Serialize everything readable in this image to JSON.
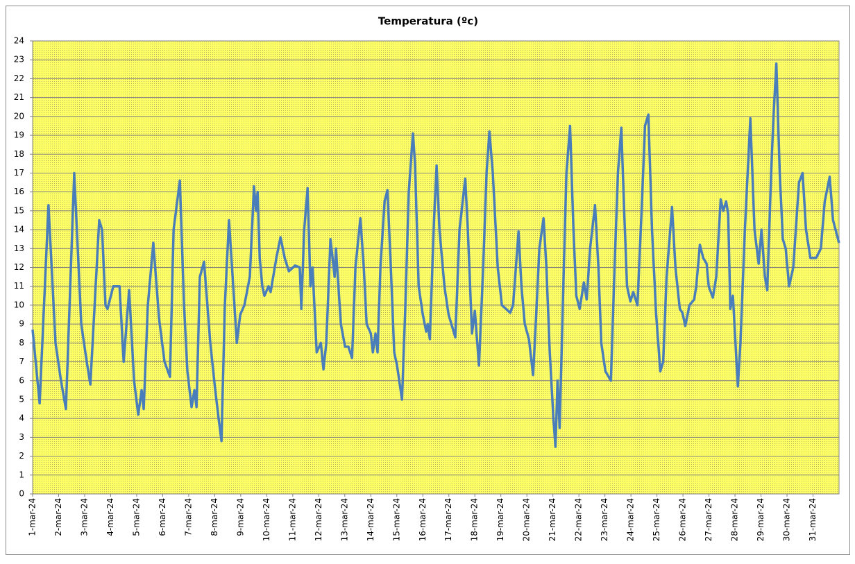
{
  "chart_data": {
    "type": "line",
    "title": "Temperatura (ºc)",
    "xlim": [
      1,
      32
    ],
    "xticks": [
      {
        "value": 1,
        "label": "1-mar-24"
      },
      {
        "value": 2,
        "label": "2-mar-24"
      },
      {
        "value": 3,
        "label": "3-mar-24"
      },
      {
        "value": 4,
        "label": "4-mar-24"
      },
      {
        "value": 5,
        "label": "5-mar-24"
      },
      {
        "value": 6,
        "label": "6-mar-24"
      },
      {
        "value": 7,
        "label": "7-mar-24"
      },
      {
        "value": 8,
        "label": "8-mar-24"
      },
      {
        "value": 9,
        "label": "9-mar-24"
      },
      {
        "value": 10,
        "label": "10-mar-24"
      },
      {
        "value": 11,
        "label": "11-mar-24"
      },
      {
        "value": 12,
        "label": "12-mar-24"
      },
      {
        "value": 13,
        "label": "13-mar-24"
      },
      {
        "value": 14,
        "label": "14-mar-24"
      },
      {
        "value": 15,
        "label": "15-mar-24"
      },
      {
        "value": 16,
        "label": "16-mar-24"
      },
      {
        "value": 17,
        "label": "17-mar-24"
      },
      {
        "value": 18,
        "label": "18-mar-24"
      },
      {
        "value": 19,
        "label": "19-mar-24"
      },
      {
        "value": 20,
        "label": "20-mar-24"
      },
      {
        "value": 21,
        "label": "21-mar-24"
      },
      {
        "value": 22,
        "label": "22-mar-24"
      },
      {
        "value": 23,
        "label": "23-mar-24"
      },
      {
        "value": 24,
        "label": "24-mar-24"
      },
      {
        "value": 25,
        "label": "25-mar-24"
      },
      {
        "value": 26,
        "label": "26-mar-24"
      },
      {
        "value": 27,
        "label": "27-mar-24"
      },
      {
        "value": 28,
        "label": "28-mar-24"
      },
      {
        "value": 29,
        "label": "29-mar-24"
      },
      {
        "value": 30,
        "label": "30-mar-24"
      },
      {
        "value": 31,
        "label": "31-mar-24"
      }
    ],
    "ylim": [
      0,
      24
    ],
    "yticks": [
      0,
      1,
      2,
      3,
      4,
      5,
      6,
      7,
      8,
      9,
      10,
      11,
      12,
      13,
      14,
      15,
      16,
      17,
      18,
      19,
      20,
      21,
      22,
      23,
      24
    ],
    "grid": true,
    "x": [
      1,
      1.27,
      1.61,
      1.88,
      2.09,
      2.28,
      2.6,
      2.87,
      3.08,
      3.22,
      3.56,
      3.67,
      3.8,
      3.88,
      4.1,
      4.34,
      4.5,
      4.71,
      4.9,
      5.06,
      5.19,
      5.27,
      5.43,
      5.64,
      5.86,
      6.07,
      6.28,
      6.42,
      6.66,
      6.82,
      6.95,
      7.11,
      7.22,
      7.3,
      7.43,
      7.59,
      7.83,
      8.02,
      8.15,
      8.26,
      8.39,
      8.55,
      8.85,
      8.98,
      9.14,
      9.35,
      9.51,
      9.59,
      9.65,
      9.73,
      9.83,
      9.91,
      10.07,
      10.15,
      10.37,
      10.53,
      10.69,
      10.85,
      11.09,
      11.27,
      11.33,
      11.44,
      11.57,
      11.68,
      11.76,
      11.92,
      12.08,
      12.18,
      12.29,
      12.45,
      12.61,
      12.66,
      12.85,
      13.01,
      13.14,
      13.28,
      13.41,
      13.6,
      13.73,
      13.84,
      14,
      14.08,
      14.18,
      14.26,
      14.37,
      14.53,
      14.64,
      14.77,
      14.9,
      15.01,
      15.2,
      15.33,
      15.46,
      15.62,
      15.7,
      15.84,
      16,
      16.13,
      16.19,
      16.27,
      16.43,
      16.53,
      16.64,
      16.83,
      16.99,
      17.25,
      17.41,
      17.63,
      17.73,
      17.89,
      18,
      18.16,
      18.32,
      18.45,
      18.56,
      18.69,
      18.88,
      19.04,
      19.36,
      19.47,
      19.55,
      19.68,
      19.79,
      19.92,
      20.08,
      20.24,
      20.34,
      20.48,
      20.64,
      20.75,
      20.88,
      21.02,
      21.1,
      21.18,
      21.26,
      21.42,
      21.52,
      21.66,
      21.79,
      21.9,
      22.03,
      22.19,
      22.3,
      22.43,
      22.62,
      22.75,
      22.86,
      23.02,
      23.23,
      23.37,
      23.5,
      23.63,
      23.74,
      23.85,
      23.98,
      24.09,
      24.25,
      24.41,
      24.54,
      24.67,
      24.81,
      24.97,
      25.13,
      25.24,
      25.37,
      25.58,
      25.71,
      25.88,
      25.98,
      26.09,
      26.25,
      26.43,
      26.51,
      26.65,
      26.78,
      26.91,
      26.99,
      27.15,
      27.28,
      27.45,
      27.55,
      27.66,
      27.74,
      27.82,
      27.92,
      28.11,
      28.21,
      28.38,
      28.59,
      28.75,
      28.91,
      29.02,
      29.15,
      29.24,
      29.39,
      29.48,
      29.59,
      29.72,
      29.84,
      29.95,
      30.08,
      30.24,
      30.46,
      30.6,
      30.73,
      30.9,
      31.12,
      31.3,
      31.45,
      31.64,
      31.77,
      32
    ],
    "series": [
      {
        "color": "#4a7ebb",
        "values": [
          8.7,
          4.8,
          15.3,
          8,
          6,
          4.5,
          17,
          9,
          7,
          5.8,
          14.5,
          14,
          10,
          9.8,
          11,
          11,
          7,
          10.8,
          6,
          4.2,
          5.5,
          4.5,
          10,
          13.3,
          9.3,
          7,
          6.2,
          14,
          16.6,
          10,
          6.5,
          4.6,
          5.5,
          4.6,
          11.5,
          12.3,
          8,
          5.5,
          4,
          2.8,
          10,
          14.5,
          8,
          9.5,
          10,
          11.5,
          16.3,
          15,
          16,
          12.5,
          11,
          10.5,
          11,
          10.7,
          12.5,
          13.6,
          12.5,
          11.8,
          12.1,
          12,
          9.8,
          14,
          16.2,
          11,
          12,
          7.5,
          8,
          6.6,
          8,
          13.5,
          11.5,
          13,
          9,
          7.8,
          7.8,
          7.2,
          12,
          14.6,
          12,
          9,
          8.5,
          7.5,
          8.5,
          7.5,
          12,
          15.5,
          16.1,
          12,
          7.5,
          6.8,
          5,
          10,
          16,
          19.1,
          17.5,
          11,
          9.5,
          8.6,
          9,
          8.2,
          14.5,
          17.4,
          14,
          11,
          9.5,
          8.3,
          14,
          16.7,
          14,
          8.5,
          9.7,
          6.8,
          12,
          17,
          19.2,
          17,
          12,
          10,
          9.6,
          10,
          11.5,
          13.9,
          11,
          9,
          8.2,
          6.3,
          9,
          13,
          14.6,
          12,
          7.5,
          4,
          2.5,
          6,
          3.5,
          12,
          17,
          19.5,
          14,
          10.5,
          9.8,
          11.2,
          10.3,
          13,
          15.3,
          12,
          8,
          6.5,
          6,
          12,
          17,
          19.4,
          15,
          11,
          10.2,
          10.7,
          10,
          15,
          19.5,
          20.1,
          14,
          9.5,
          6.5,
          7,
          11.5,
          15.2,
          12,
          9.8,
          9.6,
          8.9,
          10,
          10.3,
          11,
          13.2,
          12.5,
          12.2,
          11,
          10.4,
          11.5,
          15.6,
          15,
          15.5,
          14.8,
          9.8,
          10.5,
          5.7,
          8,
          14,
          19.9,
          14,
          12.2,
          14,
          11.5,
          10.8,
          17,
          20,
          22.8,
          17,
          13.5,
          13,
          11,
          12,
          16.5,
          17,
          14,
          12.5,
          12.5,
          13,
          15.5,
          16.8,
          14.5,
          13.3
        ]
      }
    ]
  }
}
